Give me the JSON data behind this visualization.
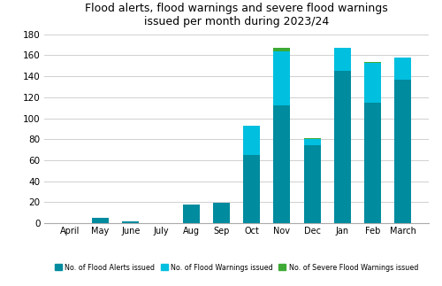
{
  "title": "Flood alerts, flood warnings and severe flood warnings\nissued per month during 2023/24",
  "months": [
    "April",
    "May",
    "June",
    "July",
    "Aug",
    "Sep",
    "Oct",
    "Nov",
    "Dec",
    "Jan",
    "Feb",
    "March"
  ],
  "flood_alerts": [
    0,
    5,
    2,
    0,
    18,
    19,
    65,
    112,
    74,
    145,
    115,
    137
  ],
  "flood_warnings": [
    0,
    0,
    0,
    0,
    0,
    0,
    28,
    52,
    6,
    22,
    38,
    21
  ],
  "severe_flood_warnings": [
    0,
    0,
    0,
    0,
    0,
    0,
    0,
    3,
    1,
    0,
    1,
    0
  ],
  "color_alerts": "#008B9E",
  "color_warnings": "#00BFDF",
  "color_severe": "#3DAA35",
  "ylim": [
    0,
    180
  ],
  "yticks": [
    0,
    20,
    40,
    60,
    80,
    100,
    120,
    140,
    160,
    180
  ],
  "legend_labels": [
    "No. of Flood Alerts issued",
    "No. of Flood Warnings issued",
    "No. of Severe Flood Warnings issued"
  ],
  "background_color": "#ffffff",
  "grid_color": "#d0d0d0"
}
